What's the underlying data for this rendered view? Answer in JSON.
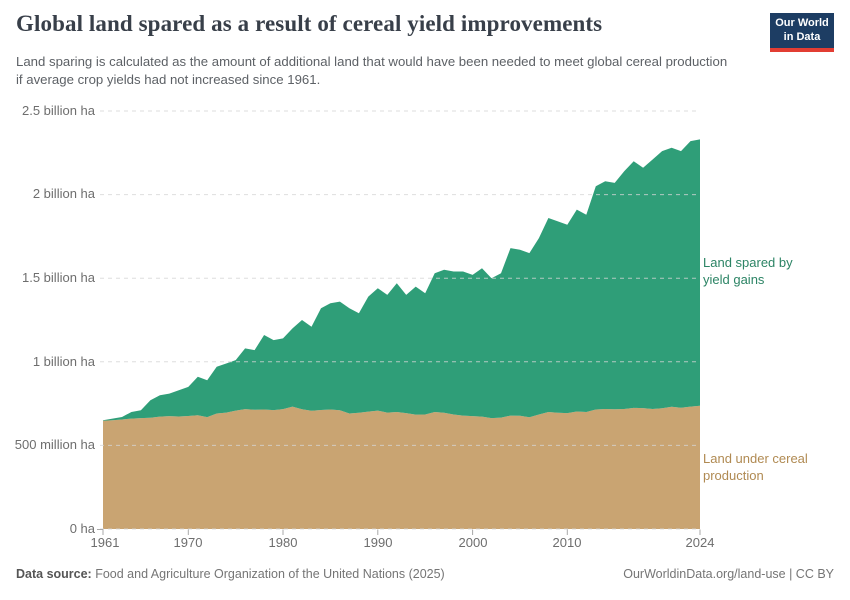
{
  "header": {
    "title": "Global land spared as a result of cereal yield improvements",
    "subtitle": "Land sparing is calculated as the amount of additional land that would have been needed to meet global cereal production if average crop yields had not increased since 1961.",
    "logo": {
      "line1": "Our World",
      "line2": "in Data",
      "bg_color": "#1d3d63",
      "bar_color": "#e23d33"
    }
  },
  "chart_data": {
    "type": "area",
    "stacked": true,
    "title": "Global land spared as a result of cereal yield improvements",
    "ylabel": "hectares",
    "ylim_billion_ha": [
      0,
      2.5
    ],
    "grid": "dashed horizontal gridlines",
    "legend_position": "right edge annotations",
    "x": [
      1961,
      1962,
      1963,
      1964,
      1965,
      1966,
      1967,
      1968,
      1969,
      1970,
      1971,
      1972,
      1973,
      1974,
      1975,
      1976,
      1977,
      1978,
      1979,
      1980,
      1981,
      1982,
      1983,
      1984,
      1985,
      1986,
      1987,
      1988,
      1989,
      1990,
      1991,
      1992,
      1993,
      1994,
      1995,
      1996,
      1997,
      1998,
      1999,
      2000,
      2001,
      2002,
      2003,
      2004,
      2005,
      2006,
      2007,
      2008,
      2009,
      2010,
      2011,
      2012,
      2013,
      2014,
      2015,
      2016,
      2017,
      2018,
      2019,
      2020,
      2021,
      2022,
      2023,
      2024
    ],
    "series": [
      {
        "name": "Land under cereal production",
        "color": "#C9A472",
        "label_color": "#B08A52",
        "unit": "billion ha",
        "values": [
          0.648,
          0.651,
          0.655,
          0.66,
          0.663,
          0.665,
          0.672,
          0.675,
          0.673,
          0.676,
          0.68,
          0.669,
          0.691,
          0.696,
          0.708,
          0.717,
          0.713,
          0.715,
          0.711,
          0.717,
          0.732,
          0.716,
          0.707,
          0.712,
          0.715,
          0.71,
          0.691,
          0.695,
          0.702,
          0.708,
          0.696,
          0.7,
          0.693,
          0.684,
          0.685,
          0.7,
          0.695,
          0.685,
          0.678,
          0.675,
          0.672,
          0.663,
          0.666,
          0.678,
          0.677,
          0.668,
          0.685,
          0.7,
          0.695,
          0.693,
          0.703,
          0.7,
          0.715,
          0.718,
          0.716,
          0.718,
          0.724,
          0.723,
          0.718,
          0.722,
          0.731,
          0.725,
          0.732,
          0.737
        ]
      },
      {
        "name": "Land spared by yield gains",
        "color": "#2F9E78",
        "label_color": "#2C8465",
        "unit": "billion ha",
        "values": [
          0.002,
          0.009,
          0.015,
          0.04,
          0.047,
          0.105,
          0.128,
          0.135,
          0.157,
          0.174,
          0.23,
          0.221,
          0.279,
          0.294,
          0.302,
          0.363,
          0.357,
          0.445,
          0.419,
          0.423,
          0.468,
          0.534,
          0.503,
          0.608,
          0.635,
          0.65,
          0.629,
          0.595,
          0.688,
          0.732,
          0.704,
          0.77,
          0.707,
          0.766,
          0.725,
          0.83,
          0.855,
          0.855,
          0.862,
          0.845,
          0.888,
          0.837,
          0.864,
          1.002,
          0.993,
          0.982,
          1.055,
          1.16,
          1.145,
          1.127,
          1.207,
          1.18,
          1.335,
          1.362,
          1.354,
          1.422,
          1.476,
          1.437,
          1.492,
          1.538,
          1.549,
          1.535,
          1.588,
          1.593
        ]
      }
    ],
    "y_axis": {
      "ticks": [
        "0 ha",
        "500 million ha",
        "1 billion ha",
        "1.5 billion ha",
        "2 billion ha",
        "2.5 billion ha"
      ]
    },
    "x_axis": {
      "ticks": [
        "1961",
        "1970",
        "1980",
        "1990",
        "2000",
        "2010",
        "2024"
      ]
    }
  },
  "footer": {
    "source_label": "Data source:",
    "source_text": " Food and Agriculture Organization of the United Nations (2025)",
    "attribution": "OurWorldinData.org/land-use | CC BY"
  }
}
